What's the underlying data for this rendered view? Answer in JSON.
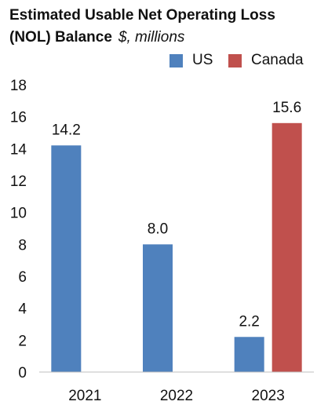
{
  "chart_data": {
    "type": "bar",
    "title": "Estimated Usable Net Operating Loss",
    "title_line2": "(NOL) Balance",
    "subtitle": "$, millions",
    "categories": [
      "2021",
      "2022",
      "2023"
    ],
    "series": [
      {
        "name": "US",
        "color": "#4f81bd",
        "values": [
          14.2,
          8.0,
          2.2
        ]
      },
      {
        "name": "Canada",
        "color": "#c0504d",
        "values": [
          null,
          null,
          15.6
        ]
      }
    ],
    "data_labels": [
      [
        "14.2",
        "8.0",
        "2.2"
      ],
      [
        null,
        null,
        "15.6"
      ]
    ],
    "ylim": [
      0,
      18
    ],
    "yticks": [
      0,
      2,
      4,
      6,
      8,
      10,
      12,
      14,
      16,
      18
    ],
    "grid": false,
    "legend_position": "top-right"
  }
}
